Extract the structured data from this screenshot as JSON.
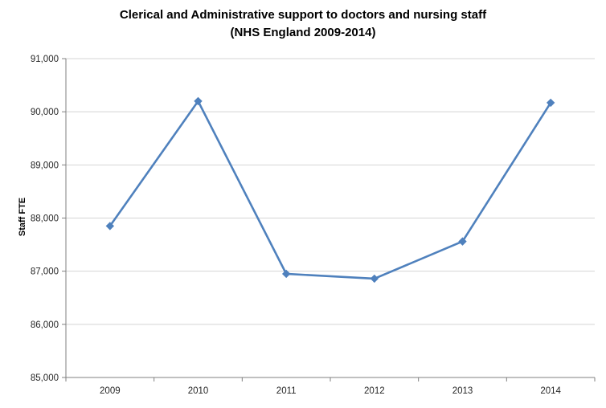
{
  "chart_data": {
    "type": "line",
    "title_line1": "Clerical and Administrative support to doctors and nursing staff",
    "title_line2": "(NHS England 2009-2014)",
    "ylabel": "Staff FTE",
    "xlabel": "",
    "categories": [
      "2009",
      "2010",
      "2011",
      "2012",
      "2013",
      "2014"
    ],
    "series": [
      {
        "name": "Staff FTE",
        "values": [
          87850,
          90200,
          86950,
          86860,
          87560,
          90170
        ]
      }
    ],
    "ylim": [
      85000,
      91000
    ],
    "ytick_values": [
      85000,
      86000,
      87000,
      88000,
      89000,
      90000,
      91000
    ],
    "ytick_labels": [
      "85,000",
      "86,000",
      "87,000",
      "88,000",
      "89,000",
      "90,000",
      "91,000"
    ],
    "grid": true,
    "legend_position": "none",
    "marker": "diamond",
    "line_color": "#4F81BD",
    "grid_color": "#D4D4D4",
    "axis_color": "#808080"
  }
}
